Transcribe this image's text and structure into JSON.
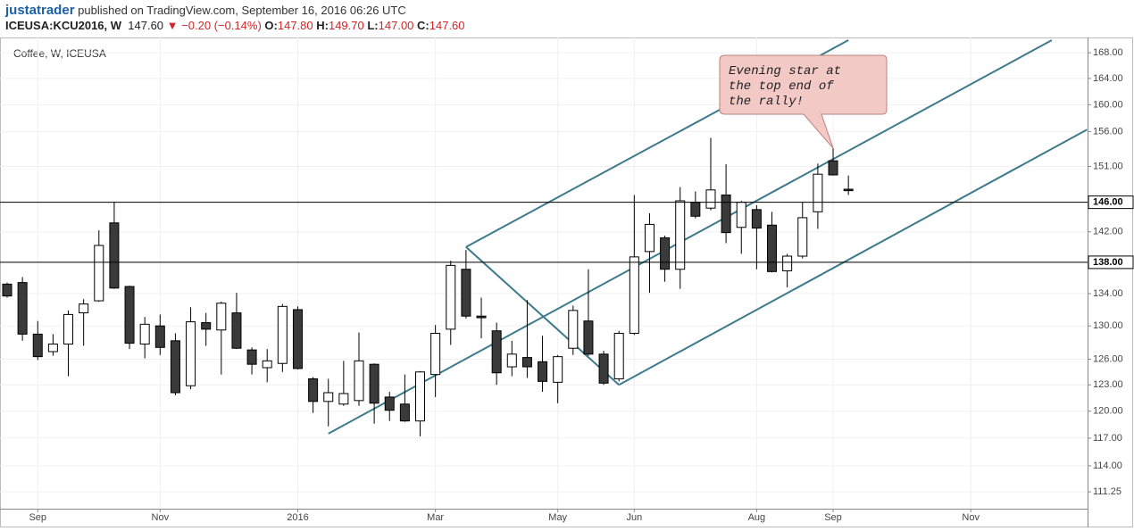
{
  "header": {
    "author": "justatrader",
    "published": "published on TradingView.com, September 16, 2016 06:26 UTC",
    "symbol": "ICEUSA:KCU2016, W",
    "price": "147.60",
    "arrow": "▼",
    "change": "−0.20 (−0.14%)",
    "ohlc": [
      {
        "label": "O:",
        "value": "147.80"
      },
      {
        "label": "H:",
        "value": "149.70"
      },
      {
        "label": "L:",
        "value": "147.00"
      },
      {
        "label": "C:",
        "value": "147.60"
      }
    ]
  },
  "chart_data": {
    "type": "candlestick",
    "title": "Coffee, W, ICEUSA",
    "log": true,
    "categories": [
      null,
      null,
      "Sep",
      null,
      null,
      null,
      null,
      null,
      null,
      null,
      "Nov",
      null,
      null,
      null,
      null,
      null,
      null,
      null,
      null,
      "2016",
      null,
      null,
      null,
      null,
      null,
      null,
      null,
      null,
      "Mar",
      null,
      null,
      null,
      null,
      null,
      null,
      null,
      "May",
      null,
      null,
      null,
      null,
      "Jun",
      null,
      null,
      null,
      null,
      null,
      null,
      null,
      "Aug",
      null,
      null,
      null,
      null,
      "Sep",
      null,
      null,
      null,
      null,
      null,
      null,
      null,
      null,
      "Nov",
      null,
      null,
      null,
      null,
      null,
      null,
      null
    ],
    "open": [
      135.2,
      135.4,
      129.0,
      126.9,
      127.8,
      131.6,
      133.1,
      143.2,
      134.9,
      127.8,
      130.0,
      128.2,
      122.9,
      130.4,
      129.5,
      131.6,
      127.1,
      125.0,
      125.5,
      132.0,
      123.7,
      121.1,
      120.8,
      121.2,
      125.4,
      121.6,
      120.8,
      118.9,
      124.2,
      129.6,
      137.1,
      131.2,
      129.4,
      125.1,
      126.2,
      125.7,
      123.3,
      127.3,
      130.6,
      126.6,
      123.7,
      129.1,
      139.4,
      141.2,
      137.1,
      146.0,
      145.2,
      147.0,
      142.6,
      145.0,
      142.9,
      136.9,
      138.8,
      144.7,
      151.8,
      147.8,
      null,
      null,
      null,
      null,
      null,
      null,
      null,
      null,
      null,
      null,
      null,
      null,
      null,
      null,
      null
    ],
    "high": [
      135.4,
      136.1,
      130.6,
      129.0,
      131.9,
      133.3,
      142.2,
      146.0,
      135.0,
      131.1,
      131.4,
      129.1,
      132.3,
      131.6,
      133.0,
      134.1,
      127.4,
      127.2,
      132.7,
      132.4,
      123.9,
      123.7,
      125.8,
      129.2,
      125.5,
      122.2,
      124.2,
      124.6,
      130.1,
      138.2,
      139.6,
      133.5,
      130.4,
      128.2,
      133.2,
      128.8,
      126.5,
      132.5,
      137.1,
      127.0,
      129.4,
      147.0,
      144.5,
      141.5,
      148.1,
      147.5,
      155.1,
      151.3,
      146.2,
      145.6,
      144.7,
      139.1,
      146.0,
      151.4,
      153.6,
      149.7,
      null,
      null,
      null,
      null,
      null,
      null,
      null,
      null,
      null,
      null,
      null,
      null,
      null,
      null,
      null
    ],
    "low": [
      133.5,
      128.2,
      125.9,
      126.4,
      124.0,
      127.6,
      133.0,
      134.6,
      127.2,
      126.1,
      126.5,
      121.8,
      122.5,
      127.6,
      124.2,
      127.2,
      124.2,
      123.3,
      124.5,
      124.8,
      119.8,
      118.3,
      120.6,
      120.6,
      118.6,
      118.9,
      118.8,
      117.2,
      121.6,
      127.7,
      130.9,
      128.5,
      123.0,
      124.0,
      123.8,
      122.2,
      120.9,
      126.5,
      126.4,
      123.0,
      123.4,
      128.9,
      134.1,
      135.5,
      134.6,
      143.8,
      144.9,
      140.5,
      139.1,
      137.1,
      136.7,
      134.8,
      138.5,
      142.4,
      149.7,
      147.0,
      null,
      null,
      null,
      null,
      null,
      null,
      null,
      null,
      null,
      null,
      null,
      null,
      null,
      null,
      null
    ],
    "close": [
      133.7,
      129.0,
      126.3,
      127.8,
      131.4,
      132.7,
      140.2,
      134.7,
      127.9,
      130.2,
      127.4,
      122.1,
      130.5,
      129.6,
      132.8,
      127.3,
      125.4,
      125.8,
      132.4,
      124.9,
      121.1,
      122.1,
      122.0,
      125.8,
      120.9,
      120.1,
      118.9,
      124.5,
      129.1,
      137.6,
      131.2,
      131.0,
      124.4,
      126.6,
      125.1,
      123.4,
      126.3,
      131.9,
      126.6,
      123.2,
      129.1,
      138.7,
      143.0,
      137.1,
      146.2,
      144.1,
      147.7,
      141.9,
      146.0,
      142.5,
      136.8,
      138.8,
      143.9,
      149.9,
      149.8,
      147.6,
      null,
      null,
      null,
      null,
      null,
      null,
      null,
      null,
      null,
      null,
      null,
      null,
      null,
      null,
      null
    ],
    "up_color": "#ffffff",
    "down_color": "#3a3a3a",
    "line_color": "#000000",
    "ylim": [
      109.5,
      170
    ],
    "yticks": [
      {
        "value": 168,
        "label": "168.00"
      },
      {
        "value": 164,
        "label": "164.00"
      },
      {
        "value": 160,
        "label": "160.00"
      },
      {
        "value": 156,
        "label": "156.00"
      },
      {
        "value": 151,
        "label": "151.00"
      },
      {
        "value": 146,
        "label": "146.00"
      },
      {
        "value": 142,
        "label": "142.00"
      },
      {
        "value": 138,
        "label": "138.00"
      },
      {
        "value": 134,
        "label": "134.00"
      },
      {
        "value": 130,
        "label": "130.00"
      },
      {
        "value": 126,
        "label": "126.00"
      },
      {
        "value": 123,
        "label": "123.00"
      },
      {
        "value": 120,
        "label": "120.00"
      },
      {
        "value": 117,
        "label": "117.00"
      },
      {
        "value": 114,
        "label": "114.00"
      },
      111.25
    ],
    "grid": true,
    "hlines": [
      {
        "value": 146,
        "label": "146.00"
      },
      {
        "value": 138,
        "label": "138.00"
      }
    ],
    "trendlines": [
      {
        "x": [
          21,
          68.3
        ],
        "y": [
          117.5,
          170
        ]
      },
      {
        "x": [
          30,
          55
        ],
        "y": [
          140,
          170
        ]
      },
      {
        "x": [
          30,
          40
        ],
        "y": [
          140,
          123
        ]
      },
      {
        "x": [
          40,
          70.6
        ],
        "y": [
          123,
          156.3
        ]
      }
    ],
    "trend_color": "#3d7a8c",
    "annotation": {
      "lines": [
        "Evening star at",
        "the top end of",
        "the rally!"
      ],
      "x": 54,
      "y": 153.6
    }
  }
}
